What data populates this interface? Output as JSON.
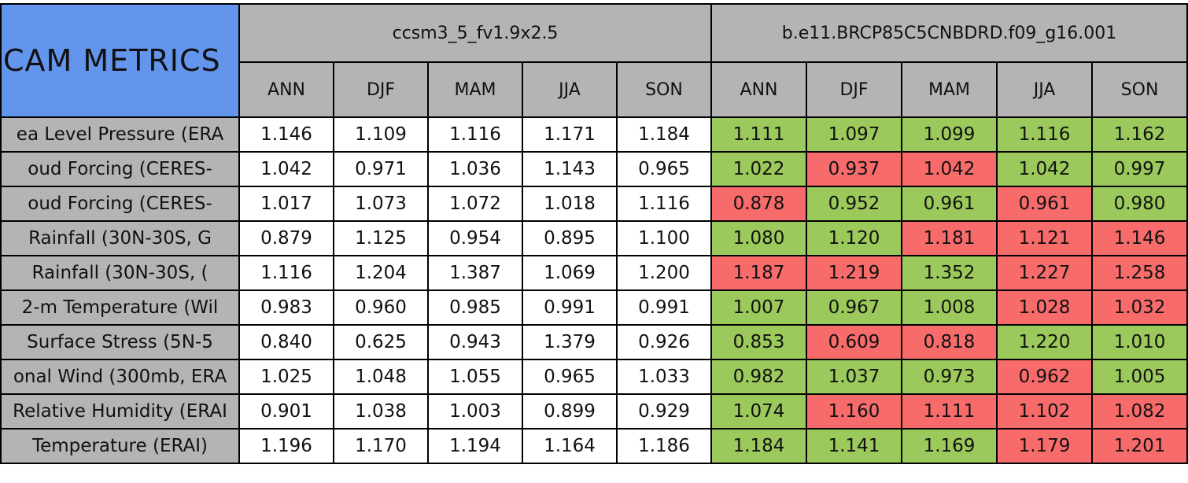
{
  "table": {
    "title": "CAM METRICS",
    "models": [
      "ccsm3_5_fv1.9x2.5",
      "b.e11.BRCP85C5CNBDRD.f09_g16.001"
    ],
    "seasons": [
      "ANN",
      "DJF",
      "MAM",
      "JJA",
      "SON"
    ],
    "colors": {
      "good": "#9bc95b",
      "bad": "#f76b6b"
    },
    "rows": [
      {
        "label": "ea Level Pressure (ERA",
        "model1": [
          "1.146",
          "1.109",
          "1.116",
          "1.171",
          "1.184"
        ],
        "model2": [
          "1.111",
          "1.097",
          "1.099",
          "1.116",
          "1.162"
        ],
        "model2_colors": [
          "good",
          "good",
          "good",
          "good",
          "good"
        ]
      },
      {
        "label": "oud Forcing (CERES-",
        "model1": [
          "1.042",
          "0.971",
          "1.036",
          "1.143",
          "0.965"
        ],
        "model2": [
          "1.022",
          "0.937",
          "1.042",
          "1.042",
          "0.997"
        ],
        "model2_colors": [
          "good",
          "bad",
          "bad",
          "good",
          "good"
        ]
      },
      {
        "label": "oud Forcing (CERES-",
        "model1": [
          "1.017",
          "1.073",
          "1.072",
          "1.018",
          "1.116"
        ],
        "model2": [
          "0.878",
          "0.952",
          "0.961",
          "0.961",
          "0.980"
        ],
        "model2_colors": [
          "bad",
          "good",
          "good",
          "bad",
          "good"
        ]
      },
      {
        "label": "Rainfall (30N-30S, G",
        "model1": [
          "0.879",
          "1.125",
          "0.954",
          "0.895",
          "1.100"
        ],
        "model2": [
          "1.080",
          "1.120",
          "1.181",
          "1.121",
          "1.146"
        ],
        "model2_colors": [
          "good",
          "good",
          "bad",
          "bad",
          "bad"
        ]
      },
      {
        "label": "Rainfall (30N-30S, (",
        "model1": [
          "1.116",
          "1.204",
          "1.387",
          "1.069",
          "1.200"
        ],
        "model2": [
          "1.187",
          "1.219",
          "1.352",
          "1.227",
          "1.258"
        ],
        "model2_colors": [
          "bad",
          "bad",
          "good",
          "bad",
          "bad"
        ]
      },
      {
        "label": "2-m Temperature (Wil",
        "model1": [
          "0.983",
          "0.960",
          "0.985",
          "0.991",
          "0.991"
        ],
        "model2": [
          "1.007",
          "0.967",
          "1.008",
          "1.028",
          "1.032"
        ],
        "model2_colors": [
          "good",
          "good",
          "good",
          "bad",
          "bad"
        ]
      },
      {
        "label": "Surface Stress (5N-5",
        "model1": [
          "0.840",
          "0.625",
          "0.943",
          "1.379",
          "0.926"
        ],
        "model2": [
          "0.853",
          "0.609",
          "0.818",
          "1.220",
          "1.010"
        ],
        "model2_colors": [
          "good",
          "bad",
          "bad",
          "good",
          "good"
        ]
      },
      {
        "label": "onal Wind (300mb, ERA",
        "model1": [
          "1.025",
          "1.048",
          "1.055",
          "0.965",
          "1.033"
        ],
        "model2": [
          "0.982",
          "1.037",
          "0.973",
          "0.962",
          "1.005"
        ],
        "model2_colors": [
          "good",
          "good",
          "good",
          "bad",
          "good"
        ]
      },
      {
        "label": "Relative Humidity (ERAI",
        "model1": [
          "0.901",
          "1.038",
          "1.003",
          "0.899",
          "0.929"
        ],
        "model2": [
          "1.074",
          "1.160",
          "1.111",
          "1.102",
          "1.082"
        ],
        "model2_colors": [
          "good",
          "bad",
          "bad",
          "bad",
          "bad"
        ]
      },
      {
        "label": "Temperature (ERAI)",
        "model1": [
          "1.196",
          "1.170",
          "1.194",
          "1.164",
          "1.186"
        ],
        "model2": [
          "1.184",
          "1.141",
          "1.169",
          "1.179",
          "1.201"
        ],
        "model2_colors": [
          "good",
          "good",
          "good",
          "bad",
          "bad"
        ]
      }
    ]
  }
}
